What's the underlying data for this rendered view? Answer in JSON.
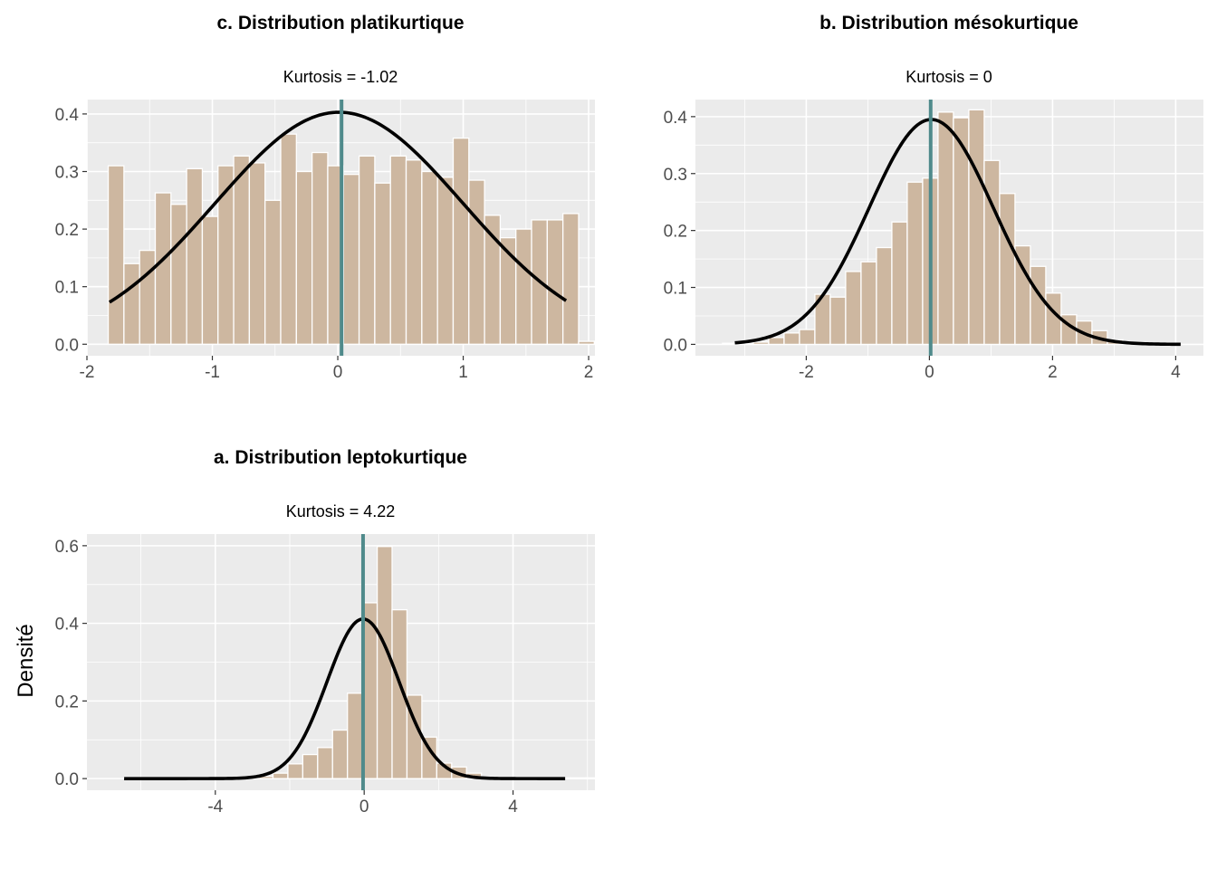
{
  "colors": {
    "panel_bg": "#ebebeb",
    "grid": "#ffffff",
    "bar_fill": "#cdb7a0",
    "bar_stroke": "#ffffff",
    "density_line": "#000000",
    "mean_line": "#4f8a8b",
    "tick_text": "#4d4d4d"
  },
  "y_axis_label": "Densité",
  "chart_data": [
    {
      "type": "histogram",
      "title": "c. Distribution platikurtique",
      "subtitle": "Kurtosis = -1.02",
      "xlim": [
        -2.0,
        2.05
      ],
      "ylim": [
        -0.02,
        0.425
      ],
      "x_ticks": [
        -2,
        -1,
        0,
        1,
        2
      ],
      "x_tick_labels": [
        "-2",
        "-1",
        "0",
        "1",
        "2"
      ],
      "y_ticks": [
        0,
        0.1,
        0.2,
        0.3,
        0.4
      ],
      "y_tick_labels": [
        "0.0",
        "0.1",
        "0.2",
        "0.3",
        "0.4"
      ],
      "bin_start": -1.83,
      "bin_width": 0.125,
      "bars": [
        0.31,
        0.14,
        0.163,
        0.263,
        0.243,
        0.305,
        0.222,
        0.31,
        0.327,
        0.315,
        0.25,
        0.365,
        0.3,
        0.333,
        0.31,
        0.295,
        0.327,
        0.28,
        0.327,
        0.32,
        0.3,
        0.29,
        0.358,
        0.285,
        0.224,
        0.185,
        0.2,
        0.216,
        0.216,
        0.227,
        0.005
      ],
      "density_x_range": [
        -1.82,
        1.82
      ],
      "density_curve": {
        "family": "normal",
        "mean": 0.01,
        "sd": 0.99
      },
      "mean_line_x": 0.03
    },
    {
      "type": "histogram",
      "title": "b. Distribution mésokurtique",
      "subtitle": "Kurtosis = 0",
      "xlim": [
        -3.8,
        4.45
      ],
      "ylim": [
        -0.02,
        0.43
      ],
      "x_ticks": [
        -2,
        0,
        2,
        4
      ],
      "x_tick_labels": [
        "-2",
        "0",
        "2",
        "4"
      ],
      "y_ticks": [
        0,
        0.1,
        0.2,
        0.3,
        0.4
      ],
      "y_tick_labels": [
        "0.0",
        "0.1",
        "0.2",
        "0.3",
        "0.4"
      ],
      "bin_start": -3.36,
      "bin_width": 0.25,
      "bars": [
        0.002,
        0.002,
        0.004,
        0.012,
        0.02,
        0.026,
        0.088,
        0.083,
        0.128,
        0.145,
        0.17,
        0.215,
        0.285,
        0.292,
        0.408,
        0.398,
        0.412,
        0.323,
        0.265,
        0.173,
        0.137,
        0.09,
        0.052,
        0.041,
        0.024,
        0.008,
        0.003,
        0.002
      ],
      "density_x_range": [
        -3.16,
        4.08
      ],
      "density_curve": {
        "family": "normal",
        "mean": 0.03,
        "sd": 1.01
      },
      "mean_line_x": 0.02
    },
    {
      "type": "histogram",
      "title": "a. Distribution leptokurtique",
      "subtitle": "Kurtosis = 4.22",
      "xlim": [
        -7.45,
        6.2
      ],
      "ylim": [
        -0.03,
        0.63
      ],
      "x_ticks": [
        -4,
        0,
        4
      ],
      "x_tick_labels": [
        "-4",
        "0",
        "4"
      ],
      "y_ticks": [
        0,
        0.2,
        0.4,
        0.6
      ],
      "y_tick_labels": [
        "0.0",
        "0.2",
        "0.4",
        "0.6"
      ],
      "bin_start": -6.45,
      "bin_width": 0.4,
      "bars": [
        0.002,
        0.002,
        0.002,
        0.002,
        0.002,
        0.002,
        0.002,
        0.002,
        0.004,
        0.006,
        0.014,
        0.038,
        0.062,
        0.08,
        0.125,
        0.22,
        0.453,
        0.598,
        0.435,
        0.215,
        0.107,
        0.04,
        0.03,
        0.014,
        0.004,
        0.003,
        0.002,
        0.002,
        0.002,
        0.002,
        0.002,
        0.002
      ],
      "density_x_range": [
        -6.45,
        5.4
      ],
      "density_curve": {
        "family": "normal",
        "mean": -0.03,
        "sd": 0.97
      },
      "mean_line_x": -0.03
    }
  ]
}
